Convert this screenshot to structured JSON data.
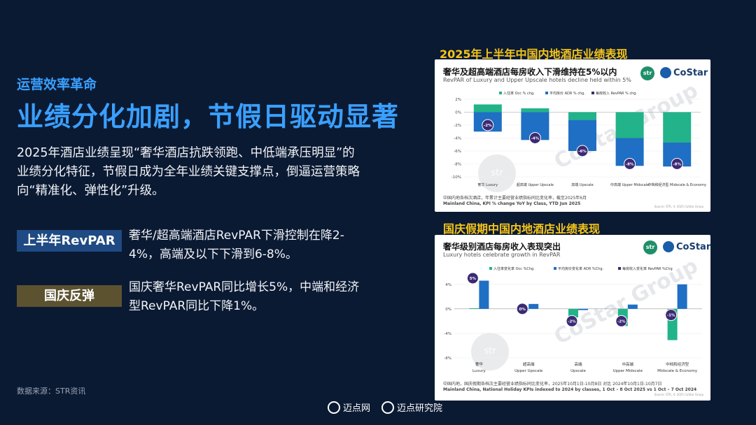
{
  "left": {
    "kicker": "运营效率革命",
    "headline": "业绩分化加剧，节假日驱动显著",
    "intro": "2025年酒店业绩呈现“奢华酒店抗跌领跑、中低端承压明显”的业绩分化特征，节假日成为全年业绩关键支撑点，倒逼运营策略向“精准化、弹性化”升级。",
    "tag1": "上半年RevPAR",
    "desc1": "奢华/超高端酒店RevPAR下滑控制在降2-4%，高端及以下下滑到6-8%。",
    "tag2": "国庆反弹",
    "desc2": "国庆奢华RevPAR同比增长5%，中端和经济型RevPAR同比下降1%。",
    "source": "数据来源：STR资讯"
  },
  "footer": {
    "brand1": "迈点网",
    "brand2": "迈点研究院"
  },
  "panel1": {
    "section_title": "2025年上半年中国内地酒店业绩表现",
    "title": "奢华及超高端酒店每房收入下滑维持在5%以内",
    "subtitle": "RevPAR of Luxury and Upper Upscale hotels decline held within 5%",
    "logo_str": "str",
    "logo_costar": "CoStar",
    "watermark": "CoStar Group",
    "note_cn": "中国内地各档次酒店，年累计主要经营业绩指标同比变化率，截至2025年6月",
    "note_en": "Mainland China, KPI % change YoY by Class, YTD Jun 2025",
    "tiny": "Source: STR, © 2025 CoStar Group"
  },
  "panel2": {
    "section_title": "国庆假期中国内地酒店业绩表现",
    "title": "奢华级别酒店每房收入表现突出",
    "subtitle": "Luxury hotels celebrate growth in RevPAR",
    "logo_str": "str",
    "logo_costar": "CoStar",
    "watermark": "CoStar Group",
    "note_cn": "中国内地，国庆假期各档次主要经营业绩指标同比变化率，2025年10月1日-10月8日 对比 2024年10月1日-10月7日",
    "note_en": "Mainland China, National Holiday KPIs indexed to 2024 by classes, 1 Oct – 8 Oct 2025 vs 1 Oct – 7 Oct 2024",
    "tiny": "Source: STR, © 2025 CoStar Group"
  },
  "chart_data": [
    {
      "type": "bar",
      "stacked": true,
      "title": "奢华及超高端酒店每房收入下滑维持在5%以内",
      "categories": [
        "奢华 Luxury",
        "超高端 Upper Upscale",
        "高端 Upscale",
        "中高端 Upper Midscale",
        "中档和经济型 Midscale & Economy"
      ],
      "series": [
        {
          "name": "入住率 Occ % chg.",
          "color": "#22b38a",
          "values": [
            1.2,
            0.6,
            -1.2,
            -4.0,
            -4.7
          ]
        },
        {
          "name": "平均房价 ADR % chg.",
          "color": "#1f6fc4",
          "values": [
            -3.0,
            -4.3,
            -4.8,
            -4.3,
            -3.7
          ]
        }
      ],
      "revpar": {
        "name": "每房收入 RevPAR % chg.",
        "values": [
          -2,
          -4,
          -6,
          -8,
          -8
        ],
        "labels": [
          "-2%",
          "-4%",
          "-6%",
          "-8%",
          "-8%"
        ]
      },
      "yticks": [
        "2%",
        "0%",
        "-2%",
        "-4%",
        "-6%",
        "-8%",
        "-10%"
      ],
      "ylim": [
        -10,
        2
      ],
      "legend": "top"
    },
    {
      "type": "bar",
      "title": "奢华级别酒店每房收入表现突出",
      "categories": [
        "奢华 Luxury",
        "超高端 Upper Upscale",
        "高端 Upscale",
        "中高端 Upper Midscale",
        "中档和经济型 Midscale & Economy"
      ],
      "series": [
        {
          "name": "入住率变化率 Occ %Chg.",
          "color": "#22b38a",
          "values": [
            0.1,
            -0.3,
            -1.4,
            -2.8,
            -5.1
          ]
        },
        {
          "name": "平均房价变化率 ADR %Chg.",
          "color": "#1f6fc4",
          "values": [
            4.6,
            0.8,
            -0.2,
            0.7,
            4.0
          ]
        }
      ],
      "revpar": {
        "name": "每房收入变化率 RevPAR %Chg",
        "values": [
          5,
          0,
          -2,
          -2,
          -1
        ],
        "labels": [
          "5%",
          "0%",
          "-2%",
          "-2%",
          "-1%"
        ]
      },
      "yticks": [
        "4%",
        "0%",
        "-4%",
        "-8%"
      ],
      "ylim": [
        -8,
        5
      ],
      "legend": "top"
    }
  ]
}
